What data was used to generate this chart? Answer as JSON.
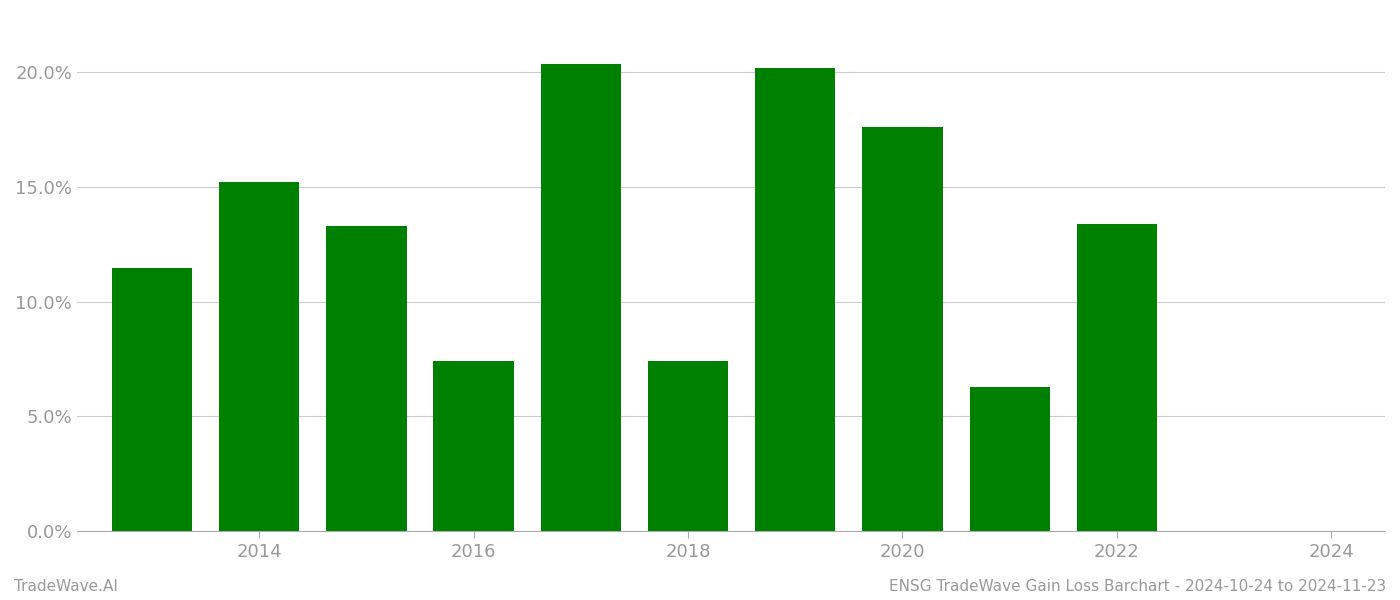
{
  "years": [
    2013,
    2014,
    2015,
    2016,
    2017,
    2018,
    2019,
    2020,
    2021,
    2022
  ],
  "values": [
    0.1148,
    0.152,
    0.133,
    0.0742,
    0.2038,
    0.0742,
    0.202,
    0.176,
    0.063,
    0.134
  ],
  "bar_color": "#008000",
  "background_color": "#ffffff",
  "yticks": [
    0.0,
    0.05,
    0.1,
    0.15,
    0.2
  ],
  "ylim": [
    0,
    0.225
  ],
  "xlabel": "",
  "ylabel": "",
  "footer_left": "TradeWave.AI",
  "footer_right": "ENSG TradeWave Gain Loss Barchart - 2024-10-24 to 2024-11-23",
  "footer_fontsize": 11,
  "grid_color": "#cccccc",
  "tick_label_color": "#999999",
  "bar_width": 0.75,
  "xtick_labels": [
    "2014",
    "2016",
    "2018",
    "2020",
    "2022",
    "2024"
  ],
  "xtick_positions": [
    1,
    3,
    5,
    7,
    9,
    11
  ]
}
